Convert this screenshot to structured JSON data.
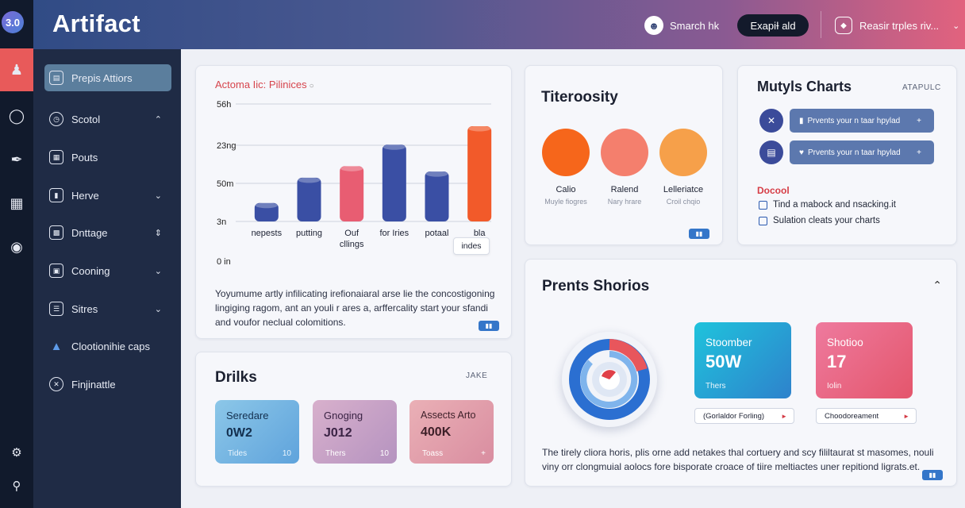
{
  "header": {
    "title": "Artifact",
    "search_label": "Smarch hk",
    "export_label": "ExapiƗ ald",
    "user_label": "Reasir trples riv..."
  },
  "rail": {
    "logo": "3.0"
  },
  "sidebar": {
    "items": [
      {
        "label": "Prepis Attiors",
        "icon": "clipboard-icon",
        "chevron": ""
      },
      {
        "label": "Scotol",
        "icon": "clock-icon",
        "chevron": "up"
      },
      {
        "label": "Pouts",
        "icon": "grid-icon",
        "chevron": ""
      },
      {
        "label": "Herve",
        "icon": "phone-icon",
        "chevron": "down"
      },
      {
        "label": "Dnttage",
        "icon": "image-icon",
        "chevron": "expand"
      },
      {
        "label": "Cooning",
        "icon": "folder-icon",
        "chevron": "down"
      },
      {
        "label": "Sitres",
        "icon": "list-icon",
        "chevron": "down"
      },
      {
        "label": "Clootionihie caps",
        "icon": "bell-icon",
        "chevron": ""
      },
      {
        "label": "Finjinattle",
        "icon": "settings-icon",
        "chevron": ""
      }
    ]
  },
  "chart_card": {
    "title": "Actoma Iic: Pilinices",
    "description": "Yoyumume artly infilicating irefionaiaral arse lie the concostigoning lingiging ragom, ant an youli r ares a, arffercality start your sfandi and voufor neclual colomitions.",
    "tooltip": "indes"
  },
  "chart_data": {
    "type": "bar",
    "categories": [
      "nepests",
      "putting",
      "Ouf cllings",
      "for Iries",
      "potaal",
      "bla"
    ],
    "values": [
      24,
      57,
      72,
      100,
      65,
      124
    ],
    "y_ticks": [
      "56h",
      "23ng",
      "50m",
      "3n",
      "0 in"
    ],
    "colors": [
      "#3a4fa4",
      "#3a4fa4",
      "#e85d72",
      "#3a4fa4",
      "#3a4fa4",
      "#f25a2a"
    ]
  },
  "titerosity": {
    "title": "Titeroosity",
    "items": [
      {
        "label": "Calio",
        "sub": "Muyle fiogres",
        "color": "#f6661b"
      },
      {
        "label": "Ralend",
        "sub": "Nary hrare",
        "color": "#f47f6d"
      },
      {
        "label": "Lelleriatce",
        "sub": "Croil chqio",
        "color": "#f6a04a"
      }
    ],
    "badge": "▮▮"
  },
  "mutyls": {
    "title": "Mutyls Charts",
    "tag": "ATAPULC",
    "buttons": [
      {
        "label": "Prvents your n taar hpylad",
        "icon": "x-icon"
      },
      {
        "label": "Prvents your n taar hpylad",
        "icon": "file-icon"
      }
    ],
    "section_title": "Docool",
    "checks": [
      "Tind a mabock and nsacking.it",
      "Sulation cleats your charts"
    ]
  },
  "drilks": {
    "title": "Drilks",
    "tag": "JAKE",
    "stats": [
      {
        "title": "Seredare",
        "value": "0W2",
        "sub": "Tides",
        "num": "10"
      },
      {
        "title": "Gnoging",
        "value": "J012",
        "sub": "Thers",
        "num": "10"
      },
      {
        "title": "Assects Arto",
        "value": "400K",
        "sub": "Toass",
        "num": "+"
      }
    ]
  },
  "prents": {
    "title": "Prents Shorios",
    "stats": [
      {
        "title": "Stoomber",
        "value": "50W",
        "sub": "Thers"
      },
      {
        "title": "Shotioo",
        "value": "17",
        "sub": "Iolin"
      }
    ],
    "pills": [
      "(Gorlaldor Forling)",
      "Choodoreament"
    ],
    "description": "The tirely cliora horis, plis orne add netakes thal cortuery and scy fililtaurat st masomes, nouli viny orr clongmuial aolocs fore bisporate croace of tiire meltiactes uner repitiond ligrats.et.",
    "badge": "▮▮"
  }
}
